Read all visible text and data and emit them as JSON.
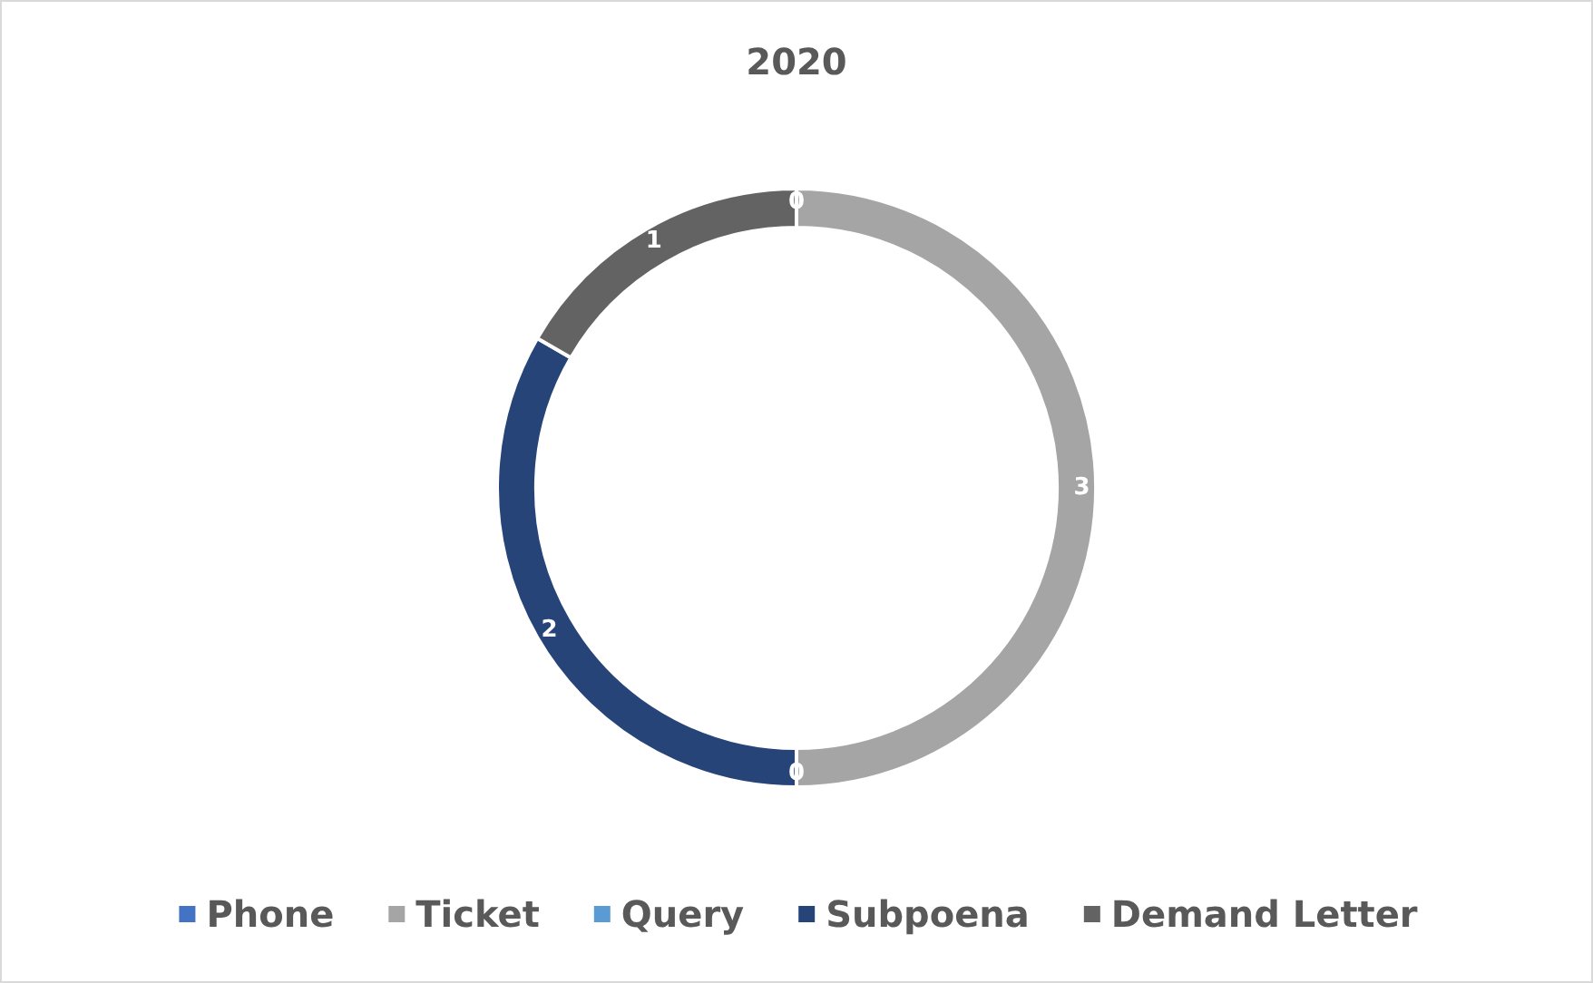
{
  "chart_data": {
    "type": "donut",
    "title": "2020",
    "categories": [
      "Phone",
      "Ticket",
      "Query",
      "Subpoena",
      "Demand Letter"
    ],
    "values": [
      0,
      3,
      0,
      2,
      1
    ],
    "colors": [
      "#4472c4",
      "#a5a5a5",
      "#5b9bd5",
      "#264478",
      "#636363"
    ],
    "value_labels": [
      "0",
      "3",
      "0",
      "2",
      "1"
    ],
    "legend": "bottom"
  }
}
